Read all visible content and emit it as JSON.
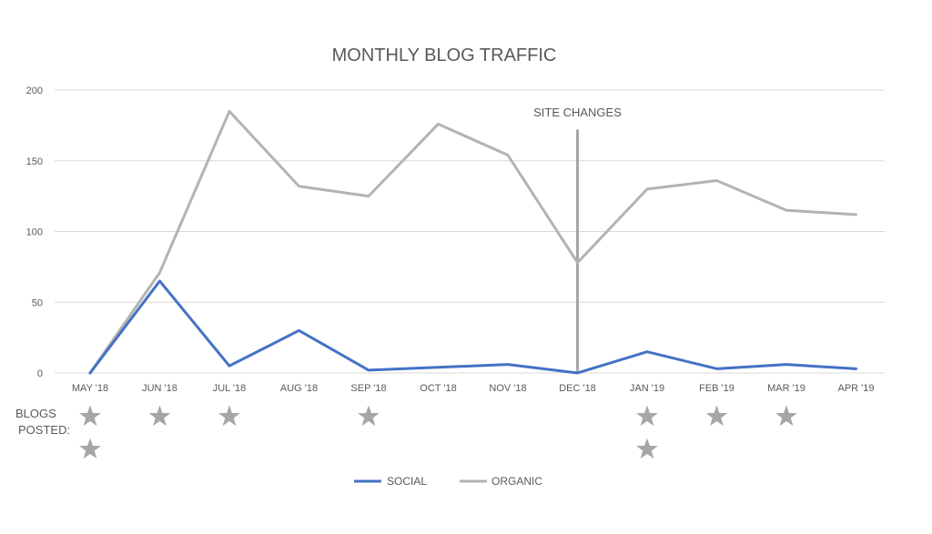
{
  "chart_data": {
    "type": "line",
    "title": "MONTHLY BLOG TRAFFIC",
    "categories": [
      "MAY '18",
      "JUN '18",
      "JUL '18",
      "AUG '18",
      "SEP '18",
      "OCT '18",
      "NOV '18",
      "DEC '18",
      "JAN '19",
      "FEB '19",
      "MAR '19",
      "APR '19"
    ],
    "series": [
      {
        "name": "SOCIAL",
        "color": "#4472c4",
        "values": [
          0,
          65,
          5,
          30,
          2,
          4,
          6,
          0,
          15,
          3,
          6,
          3
        ]
      },
      {
        "name": "ORGANIC",
        "color": "#b3b3b3",
        "values": [
          0,
          71,
          185,
          132,
          125,
          176,
          154,
          78,
          130,
          136,
          115,
          112
        ]
      }
    ],
    "ylim": [
      0,
      200
    ],
    "yticks": [
      0,
      50,
      100,
      150,
      200
    ],
    "grid": true,
    "legend": "bottom",
    "annotation": {
      "label": "SITE CHANGES",
      "category": "DEC '18",
      "top_value": 172
    },
    "blogs_posted": {
      "label": "BLOGS POSTED:",
      "counts": [
        2,
        1,
        1,
        0,
        1,
        0,
        0,
        0,
        2,
        1,
        1,
        0
      ]
    }
  },
  "colors": {
    "axis_text": "#595959",
    "grid": "#d9d9d9",
    "star": "#a6a6a6",
    "annotation_line": "#a6a6a6"
  }
}
